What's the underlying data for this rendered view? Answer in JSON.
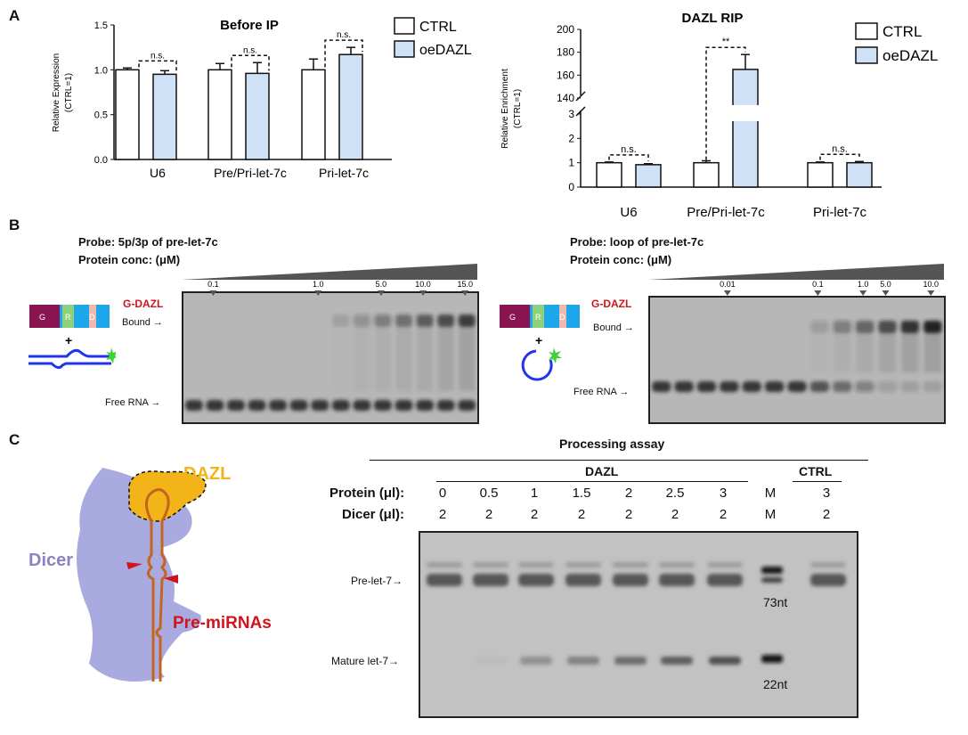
{
  "panel_letters": {
    "a": "A",
    "b": "B",
    "c": "C"
  },
  "legend": {
    "ctrl": "CTRL",
    "oe": "oeDAZL"
  },
  "colors": {
    "ctrl_fill": "#ffffff",
    "oe_fill": "#cfe1f7",
    "stroke": "#111111",
    "dazl_red": "#d0141c",
    "dazl_gold": "#f2b418",
    "dicer_purple": "#a9abe0",
    "dicer_label": "#8f7fc3",
    "rna_orange": "#c4641e",
    "probe_blue": "#2233ee",
    "probe_star": "#3fd13a"
  },
  "chart_data": [
    {
      "type": "bar",
      "title": "Before IP",
      "ylabel": "Relative Expression (CTRL=1)",
      "ylim": [
        0.0,
        1.5
      ],
      "yticks": [
        "0.0",
        "0.5",
        "1.0",
        "1.5"
      ],
      "categories": [
        "U6",
        "Pre/Pri-let-7c",
        "Pri-let-7c"
      ],
      "series": [
        {
          "name": "CTRL",
          "values": [
            1.0,
            1.0,
            1.0
          ],
          "errors": [
            0.02,
            0.07,
            0.12
          ]
        },
        {
          "name": "oeDAZL",
          "values": [
            0.95,
            0.96,
            1.17
          ],
          "errors": [
            0.04,
            0.12,
            0.08
          ]
        }
      ],
      "annotations": [
        "n.s.",
        "n.s.",
        "n.s."
      ]
    },
    {
      "type": "bar",
      "title": "DAZL RIP",
      "ylabel": "Relative Enrichment (CTRL=1)",
      "yticks": [
        "0",
        "1",
        "2",
        "3",
        "140",
        "160",
        "180",
        "200"
      ],
      "axis_break": [
        3,
        140
      ],
      "categories": [
        "U6",
        "Pre/Pri-let-7c",
        "Pri-let-7c"
      ],
      "series": [
        {
          "name": "CTRL",
          "values": [
            1.0,
            1.0,
            1.0
          ],
          "errors": [
            0.03,
            0.08,
            0.03
          ]
        },
        {
          "name": "oeDAZL",
          "values": [
            0.92,
            165,
            1.0
          ],
          "errors": [
            0.04,
            13,
            0.05
          ]
        }
      ],
      "annotations": [
        "n.s.",
        "**",
        "n.s."
      ]
    }
  ],
  "emsa_left": {
    "probe": "Probe: 5p/3p of pre-let-7c",
    "conc": "Protein conc: (μM)",
    "protein_label": "G-DAZL",
    "domains": [
      "G",
      "R",
      "D"
    ],
    "plus": "+",
    "bound": "Bound",
    "free": "Free RNA",
    "lane_labels": [
      "0.1",
      "1.0",
      "5.0",
      "10.0",
      "15.0"
    ]
  },
  "emsa_right": {
    "probe": "Probe: loop of pre-let-7c",
    "conc": "Protein conc: (μM)",
    "protein_label": "G-DAZL",
    "domains": [
      "G",
      "R",
      "D"
    ],
    "plus": "+",
    "bound": "Bound",
    "free": "Free RNA",
    "lane_labels": [
      "0.01",
      "0.1",
      "1.0",
      "5.0",
      "10.0"
    ]
  },
  "diagram": {
    "dazl": "DAZL",
    "dicer": "Dicer",
    "premirna": "Pre-miRNAs"
  },
  "processing": {
    "title": "Processing assay",
    "group_dazl": "DAZL",
    "group_ctrl": "CTRL",
    "protein_label": "Protein (μl):",
    "dicer_label": "Dicer (μl):",
    "protein_values": [
      "0",
      "0.5",
      "1",
      "1.5",
      "2",
      "2.5",
      "3",
      "M",
      "3"
    ],
    "dicer_values": [
      "2",
      "2",
      "2",
      "2",
      "2",
      "2",
      "2",
      "M",
      "2"
    ],
    "pre_label": "Pre-let-7",
    "mature_label": "Mature let-7",
    "marker_73": "73nt",
    "marker_22": "22nt"
  }
}
